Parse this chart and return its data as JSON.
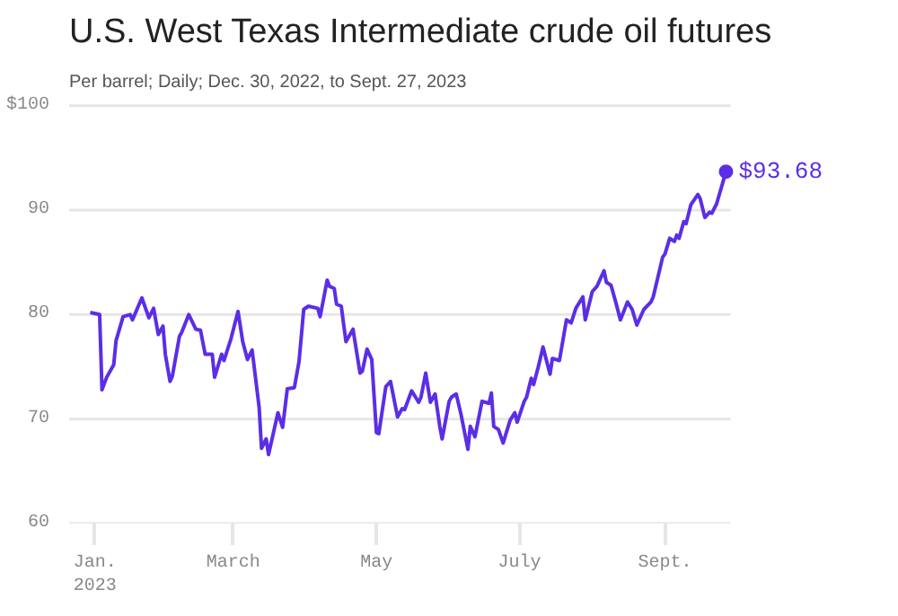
{
  "chart_data": {
    "type": "line",
    "title": "U.S. West Texas Intermediate crude oil futures",
    "subtitle": "Per barrel; Daily; Dec. 30, 2022, to Sept. 27, 2023",
    "x": [
      "2022-12-30",
      "2023-01-03",
      "2023-01-04",
      "2023-01-06",
      "2023-01-09",
      "2023-01-10",
      "2023-01-13",
      "2023-01-16",
      "2023-01-17",
      "2023-01-21",
      "2023-01-24",
      "2023-01-26",
      "2023-01-28",
      "2023-01-30",
      "2023-01-31",
      "2023-02-02",
      "2023-02-03",
      "2023-02-06",
      "2023-02-07",
      "2023-02-10",
      "2023-02-13",
      "2023-02-15",
      "2023-02-17",
      "2023-02-20",
      "2023-02-21",
      "2023-02-24",
      "2023-02-25",
      "2023-02-28",
      "2023-03-03",
      "2023-03-05",
      "2023-03-07",
      "2023-03-09",
      "2023-03-12",
      "2023-03-13",
      "2023-03-15",
      "2023-03-16",
      "2023-03-20",
      "2023-03-22",
      "2023-03-24",
      "2023-03-27",
      "2023-03-29",
      "2023-03-31",
      "2023-04-02",
      "2023-04-06",
      "2023-04-07",
      "2023-04-10",
      "2023-04-11",
      "2023-04-13",
      "2023-04-14",
      "2023-04-16",
      "2023-04-18",
      "2023-04-21",
      "2023-04-24",
      "2023-04-25",
      "2023-04-27",
      "2023-04-29",
      "2023-05-01",
      "2023-05-02",
      "2023-05-05",
      "2023-05-07",
      "2023-05-10",
      "2023-05-12",
      "2023-05-13",
      "2023-05-16",
      "2023-05-19",
      "2023-05-20",
      "2023-05-22",
      "2023-05-24",
      "2023-05-26",
      "2023-05-28",
      "2023-05-29",
      "2023-06-01",
      "2023-06-02",
      "2023-06-04",
      "2023-06-06",
      "2023-06-09",
      "2023-06-10",
      "2023-06-12",
      "2023-06-15",
      "2023-06-18",
      "2023-06-19",
      "2023-06-20",
      "2023-06-22",
      "2023-06-24",
      "2023-06-27",
      "2023-06-29",
      "2023-06-30",
      "2023-07-03",
      "2023-07-04",
      "2023-07-06",
      "2023-07-07",
      "2023-07-09",
      "2023-07-11",
      "2023-07-14",
      "2023-07-15",
      "2023-07-18",
      "2023-07-21",
      "2023-07-23",
      "2023-07-25",
      "2023-07-28",
      "2023-07-29",
      "2023-08-01",
      "2023-08-03",
      "2023-08-06",
      "2023-08-07",
      "2023-08-09",
      "2023-08-11",
      "2023-08-13",
      "2023-08-16",
      "2023-08-18",
      "2023-08-20",
      "2023-08-23",
      "2023-08-26",
      "2023-08-27",
      "2023-08-31",
      "2023-09-01",
      "2023-09-03",
      "2023-09-05",
      "2023-09-06",
      "2023-09-07",
      "2023-09-09",
      "2023-09-10",
      "2023-09-12",
      "2023-09-15",
      "2023-09-16",
      "2023-09-18",
      "2023-09-20",
      "2023-09-21",
      "2023-09-23",
      "2023-09-27"
    ],
    "series": [
      {
        "color": "#5b2ee6",
        "values": [
          80.2,
          80.0,
          72.8,
          74.0,
          75.2,
          77.5,
          79.8,
          80.0,
          79.5,
          81.6,
          79.7,
          80.6,
          78.1,
          78.9,
          76.2,
          73.6,
          74.1,
          77.9,
          78.3,
          80.0,
          78.6,
          78.5,
          76.2,
          76.2,
          74.0,
          76.2,
          75.6,
          77.7,
          80.3,
          77.4,
          75.7,
          76.6,
          71.1,
          67.2,
          68.1,
          66.6,
          70.6,
          69.2,
          72.9,
          73.0,
          75.5,
          80.5,
          80.8,
          80.6,
          79.8,
          83.3,
          82.7,
          82.5,
          81.0,
          80.8,
          77.4,
          78.6,
          74.4,
          74.6,
          76.7,
          75.7,
          68.7,
          68.6,
          73.1,
          73.6,
          70.2,
          71.0,
          70.9,
          72.7,
          71.6,
          72.1,
          74.4,
          71.6,
          72.4,
          69.3,
          68.1,
          71.7,
          72.1,
          72.4,
          70.5,
          67.1,
          69.3,
          68.3,
          71.7,
          71.5,
          72.5,
          69.3,
          69.0,
          67.7,
          69.9,
          70.6,
          69.7,
          71.7,
          72.1,
          73.9,
          73.3,
          75.0,
          76.9,
          74.3,
          75.8,
          75.6,
          79.5,
          79.2,
          80.6,
          81.7,
          79.5,
          82.2,
          82.7,
          84.2,
          83.1,
          82.8,
          81.2,
          79.5,
          81.2,
          80.5,
          79.0,
          80.5,
          81.2,
          81.7,
          85.5,
          85.8,
          87.3,
          87.0,
          87.6,
          87.3,
          88.9,
          88.7,
          90.5,
          91.5,
          91.1,
          89.3,
          89.8,
          89.7,
          90.6,
          93.68
        ]
      }
    ],
    "annotations": [
      {
        "text": "$93.68",
        "x": "2023-09-27",
        "y": 93.68
      }
    ],
    "xlim": [
      "2022-12-21",
      "2023-09-29"
    ],
    "xticks": [
      {
        "value": "2023-01-01",
        "label": "Jan.\n2023"
      },
      {
        "value": "2023-03-01",
        "label": "March"
      },
      {
        "value": "2023-05-01",
        "label": "May"
      },
      {
        "value": "2023-07-01",
        "label": "July"
      },
      {
        "value": "2023-09-01",
        "label": "Sept."
      }
    ],
    "ylim": [
      60,
      100
    ],
    "yticks": [
      {
        "value": 60,
        "label": "60"
      },
      {
        "value": 70,
        "label": "70"
      },
      {
        "value": 80,
        "label": "80"
      },
      {
        "value": 90,
        "label": "90"
      },
      {
        "value": 100,
        "label": "$100"
      }
    ],
    "grid": "y",
    "line_style": "solid"
  }
}
